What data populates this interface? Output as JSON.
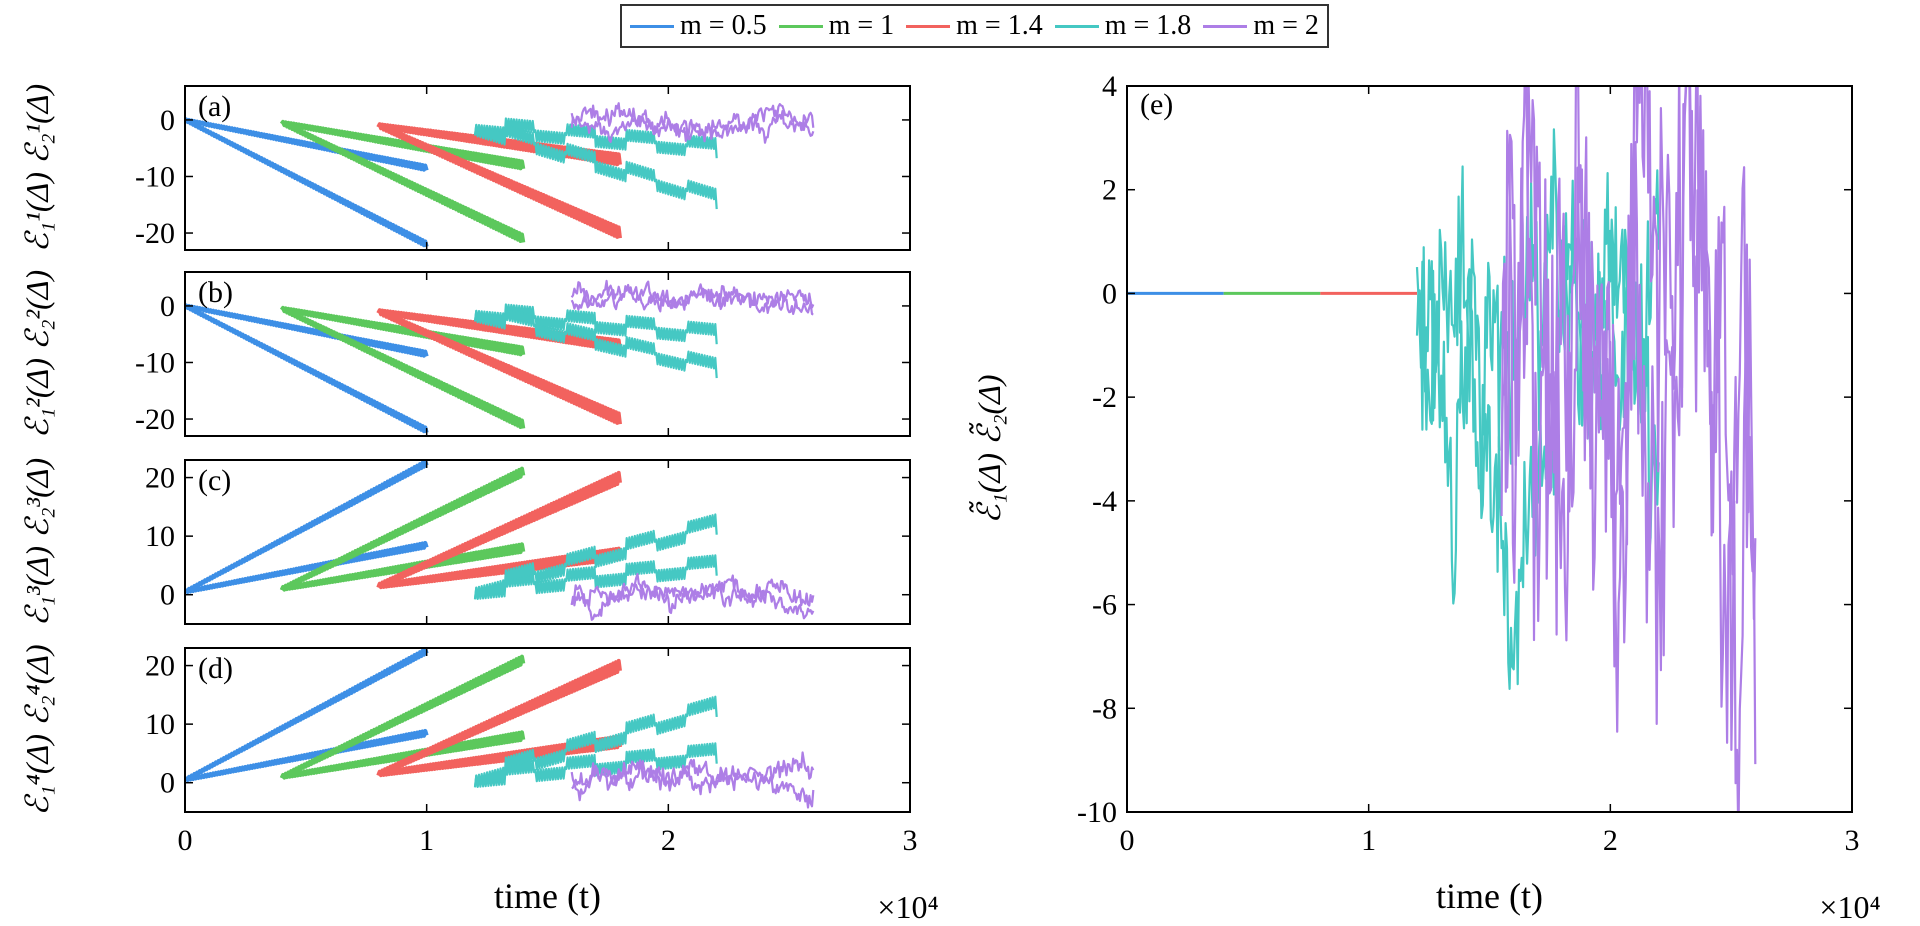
{
  "legend": {
    "placement": "top-center",
    "items": [
      {
        "label": "m = 0.5",
        "color": "#3d8fe6"
      },
      {
        "label": "m = 1",
        "color": "#5cc85c"
      },
      {
        "label": "m = 1.4",
        "color": "#f2625e"
      },
      {
        "label": "m = 1.8",
        "color": "#45c8c3"
      },
      {
        "label": "m = 2",
        "color": "#ad7ee6"
      }
    ]
  },
  "chart_data": [
    {
      "id": "a",
      "type": "line",
      "panel_label": "(a)",
      "ylabel": "ℰ₁¹(Δ)  ℰ₂¹(Δ)",
      "xlim": [
        0,
        30000
      ],
      "ylim": [
        -23,
        6
      ],
      "xticks": [
        0,
        10000,
        20000,
        30000
      ],
      "xticklabels": [],
      "yticks": [
        0,
        -10,
        -20
      ],
      "yticklabels": [
        "0",
        "-10",
        "-20"
      ],
      "series": [
        {
          "name": "m = 0.5",
          "kind": "linear",
          "t0": 0,
          "t1": 10000,
          "y0": 0,
          "y1a": -8.5,
          "y1b": -22,
          "noise": 0.8
        },
        {
          "name": "m = 1",
          "kind": "linear",
          "t0": 4000,
          "t1": 14000,
          "y0": -0.5,
          "y1a": -8,
          "y1b": -21,
          "noise": 1.3
        },
        {
          "name": "m = 1.4",
          "kind": "linear",
          "t0": 8000,
          "t1": 18000,
          "y0": -1,
          "y1a": -7,
          "y1b": -20,
          "noise": 1.8
        },
        {
          "name": "m = 1.8",
          "kind": "stepped",
          "t0": 12000,
          "t1": 22000,
          "y0": -1,
          "y1a": -5,
          "y1b": -14,
          "noise": 1.6
        },
        {
          "name": "m = 2",
          "kind": "random",
          "t0": 16000,
          "t1": 26000,
          "y0": 0,
          "y1a": -1,
          "y1b": -2,
          "noise": 1.8
        }
      ]
    },
    {
      "id": "b",
      "type": "line",
      "panel_label": "(b)",
      "ylabel": "ℰ₁²(Δ)  ℰ₂²(Δ)",
      "xlim": [
        0,
        30000
      ],
      "ylim": [
        -23,
        6
      ],
      "xticks": [
        0,
        10000,
        20000,
        30000
      ],
      "xticklabels": [],
      "yticks": [
        0,
        -10,
        -20
      ],
      "yticklabels": [
        "0",
        "-10",
        "-20"
      ],
      "series": [
        {
          "name": "m = 0.5",
          "kind": "linear",
          "t0": 0,
          "t1": 10000,
          "y0": 0,
          "y1a": -8.5,
          "y1b": -22,
          "noise": 0.8
        },
        {
          "name": "m = 1",
          "kind": "linear",
          "t0": 4000,
          "t1": 14000,
          "y0": -0.5,
          "y1a": -8,
          "y1b": -21,
          "noise": 1.3
        },
        {
          "name": "m = 1.4",
          "kind": "linear",
          "t0": 8000,
          "t1": 18000,
          "y0": -1,
          "y1a": -7,
          "y1b": -20,
          "noise": 1.8
        },
        {
          "name": "m = 1.8",
          "kind": "stepped",
          "t0": 12000,
          "t1": 22000,
          "y0": -1,
          "y1a": -5,
          "y1b": -11,
          "noise": 1.6
        },
        {
          "name": "m = 2",
          "kind": "random",
          "t0": 16000,
          "t1": 26000,
          "y0": 1,
          "y1a": 1,
          "y1b": 0,
          "noise": 1.8
        }
      ]
    },
    {
      "id": "c",
      "type": "line",
      "panel_label": "(c)",
      "ylabel": "ℰ₁³(Δ)  ℰ₂³(Δ)",
      "xlim": [
        0,
        30000
      ],
      "ylim": [
        -5,
        23
      ],
      "xticks": [
        0,
        10000,
        20000,
        30000
      ],
      "xticklabels": [],
      "yticks": [
        0,
        10,
        20
      ],
      "yticklabels": [
        "0",
        "10",
        "20"
      ],
      "series": [
        {
          "name": "m = 0.5",
          "kind": "linear",
          "t0": 0,
          "t1": 10000,
          "y0": 0.5,
          "y1a": 8.5,
          "y1b": 22.5,
          "noise": 0.8
        },
        {
          "name": "m = 1",
          "kind": "linear",
          "t0": 4000,
          "t1": 14000,
          "y0": 1,
          "y1a": 8,
          "y1b": 21,
          "noise": 1.3
        },
        {
          "name": "m = 1.4",
          "kind": "linear",
          "t0": 8000,
          "t1": 18000,
          "y0": 1.5,
          "y1a": 7,
          "y1b": 20,
          "noise": 1.8
        },
        {
          "name": "m = 1.8",
          "kind": "stepped",
          "t0": 12000,
          "t1": 22000,
          "y0": 1,
          "y1a": 5,
          "y1b": 12,
          "noise": 1.6
        },
        {
          "name": "m = 2",
          "kind": "random",
          "t0": 16000,
          "t1": 26000,
          "y0": 0,
          "y1a": -1,
          "y1b": -2,
          "noise": 1.8
        }
      ]
    },
    {
      "id": "d",
      "type": "line",
      "panel_label": "(d)",
      "ylabel": "ℰ₁⁴(Δ)  ℰ₂⁴(Δ)",
      "xlim": [
        0,
        30000
      ],
      "ylim": [
        -5,
        23
      ],
      "xticks": [
        0,
        10000,
        20000,
        30000
      ],
      "xticklabels": [
        "0",
        "1",
        "2",
        "3"
      ],
      "xlabel": "time (t)",
      "xscale_label": "×10⁴",
      "yticks": [
        0,
        10,
        20
      ],
      "yticklabels": [
        "0",
        "10",
        "20"
      ],
      "series": [
        {
          "name": "m = 0.5",
          "kind": "linear",
          "t0": 0,
          "t1": 10000,
          "y0": 0.5,
          "y1a": 8.5,
          "y1b": 22.5,
          "noise": 0.8
        },
        {
          "name": "m = 1",
          "kind": "linear",
          "t0": 4000,
          "t1": 14000,
          "y0": 1,
          "y1a": 8,
          "y1b": 21,
          "noise": 1.3
        },
        {
          "name": "m = 1.4",
          "kind": "linear",
          "t0": 8000,
          "t1": 18000,
          "y0": 1.5,
          "y1a": 7,
          "y1b": 20,
          "noise": 1.8
        },
        {
          "name": "m = 1.8",
          "kind": "stepped",
          "t0": 12000,
          "t1": 22000,
          "y0": 1,
          "y1a": 5,
          "y1b": 13,
          "noise": 1.6
        },
        {
          "name": "m = 2",
          "kind": "random",
          "t0": 16000,
          "t1": 26000,
          "y0": 0,
          "y1a": 1,
          "y1b": 2,
          "noise": 2.0
        }
      ]
    },
    {
      "id": "e",
      "type": "line",
      "panel_label": "(e)",
      "ylabel": "ℰ̃₁(Δ)  ℰ̃₂(Δ)",
      "xlim": [
        0,
        30000
      ],
      "ylim": [
        -10,
        4
      ],
      "xticks": [
        0,
        10000,
        20000,
        30000
      ],
      "xticklabels": [
        "0",
        "1",
        "2",
        "3"
      ],
      "xlabel": "time (t)",
      "xscale_label": "×10⁴",
      "yticks": [
        4,
        2,
        0,
        -2,
        -4,
        -6,
        -8,
        -10
      ],
      "yticklabels": [
        "4",
        "2",
        "0",
        "-2",
        "-4",
        "-6",
        "-8",
        "-10"
      ],
      "series": [
        {
          "name": "m = 0.5",
          "kind": "flat",
          "t0": 0,
          "t1": 4000,
          "y": 0
        },
        {
          "name": "m = 1",
          "kind": "flat",
          "t0": 4000,
          "t1": 8000,
          "y": 0
        },
        {
          "name": "m = 1.4",
          "kind": "flat",
          "t0": 8000,
          "t1": 12000,
          "y": 0
        },
        {
          "name": "m = 1.8",
          "kind": "random",
          "t0": 12000,
          "t1": 22000,
          "y0": 0,
          "y1a": -1,
          "y1b": -3,
          "noise": 2.5
        },
        {
          "name": "m = 2",
          "kind": "random",
          "t0": 15500,
          "t1": 26000,
          "y0": 0,
          "y1a": -1,
          "y1b": -4,
          "noise": 4.5
        }
      ]
    }
  ]
}
